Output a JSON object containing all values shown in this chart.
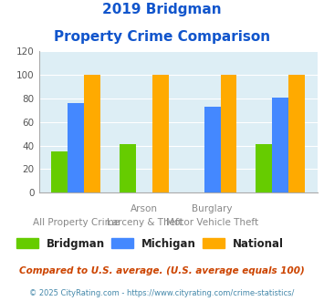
{
  "title_line1": "2019 Bridgman",
  "title_line2": "Property Crime Comparison",
  "bridgman": [
    35,
    41,
    0,
    41
  ],
  "michigan": [
    76,
    0,
    73,
    81
  ],
  "national": [
    100,
    100,
    100,
    100
  ],
  "color_bridgman": "#66cc00",
  "color_michigan": "#4488ff",
  "color_national": "#ffaa00",
  "ylim": [
    0,
    120
  ],
  "yticks": [
    0,
    20,
    40,
    60,
    80,
    100,
    120
  ],
  "plot_bg": "#ddeef5",
  "title_color": "#1155cc",
  "top_labels": [
    "",
    "Arson",
    "Burglary",
    ""
  ],
  "bot_labels": [
    "All Property Crime",
    "Larceny & Theft",
    "Motor Vehicle Theft",
    ""
  ],
  "footnote": "Compared to U.S. average. (U.S. average equals 100)",
  "copyright": "© 2025 CityRating.com - https://www.cityrating.com/crime-statistics/",
  "legend_labels": [
    "Bridgman",
    "Michigan",
    "National"
  ]
}
